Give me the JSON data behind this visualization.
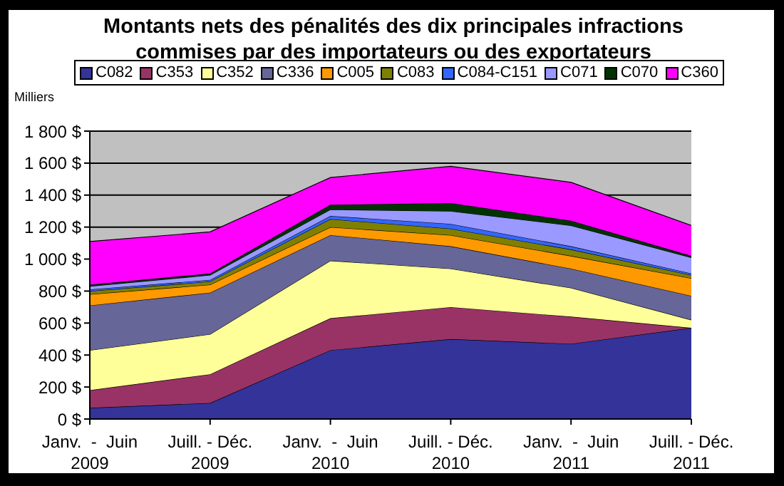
{
  "chart_data": {
    "type": "area",
    "stacked": true,
    "title": "Montants nets des pénalités des dix principales infractions commises par des importateurs ou des exportateurs",
    "ylabel": "Milliers",
    "categories": [
      "Janv.  -  Juin 2009",
      "Juill. - Déc. 2009",
      "Janv.  -  Juin 2010",
      "Juill. - Déc. 2010",
      "Janv.  -  Juin 2011",
      "Juill. - Déc. 2011"
    ],
    "series": [
      {
        "name": "C082",
        "color": "#333399",
        "values": [
          70,
          100,
          430,
          500,
          470,
          570
        ]
      },
      {
        "name": "C353",
        "color": "#993366",
        "values": [
          110,
          180,
          200,
          200,
          170,
          0
        ]
      },
      {
        "name": "C352",
        "color": "#ffff99",
        "values": [
          250,
          250,
          360,
          240,
          180,
          50
        ]
      },
      {
        "name": "C336",
        "color": "#666699",
        "values": [
          280,
          260,
          160,
          140,
          120,
          150
        ]
      },
      {
        "name": "C005",
        "color": "#ff9900",
        "values": [
          70,
          50,
          50,
          70,
          80,
          110
        ]
      },
      {
        "name": "C083",
        "color": "#808000",
        "values": [
          20,
          20,
          50,
          40,
          40,
          20
        ]
      },
      {
        "name": "C084-C151",
        "color": "#3366ff",
        "values": [
          10,
          10,
          20,
          30,
          20,
          10
        ]
      },
      {
        "name": "C071",
        "color": "#9999ff",
        "values": [
          20,
          30,
          40,
          80,
          130,
          100
        ]
      },
      {
        "name": "C070",
        "color": "#003300",
        "values": [
          10,
          10,
          30,
          50,
          30,
          10
        ]
      },
      {
        "name": "C360",
        "color": "#ff00ff",
        "values": [
          270,
          260,
          170,
          230,
          240,
          190
        ]
      }
    ],
    "ylim": [
      0,
      1800
    ],
    "yticks": [
      {
        "value": 0,
        "label": "0 $"
      },
      {
        "value": 200,
        "label": "200 $"
      },
      {
        "value": 400,
        "label": "400 $"
      },
      {
        "value": 600,
        "label": "600 $"
      },
      {
        "value": 800,
        "label": "800 $"
      },
      {
        "value": 1000,
        "label": "1 000 $"
      },
      {
        "value": 1200,
        "label": "1 200 $"
      },
      {
        "value": 1400,
        "label": "1 400 $"
      },
      {
        "value": 1600,
        "label": "1 600 $"
      },
      {
        "value": 1800,
        "label": "1 800 $"
      }
    ],
    "grid": "y",
    "legend": "top"
  }
}
